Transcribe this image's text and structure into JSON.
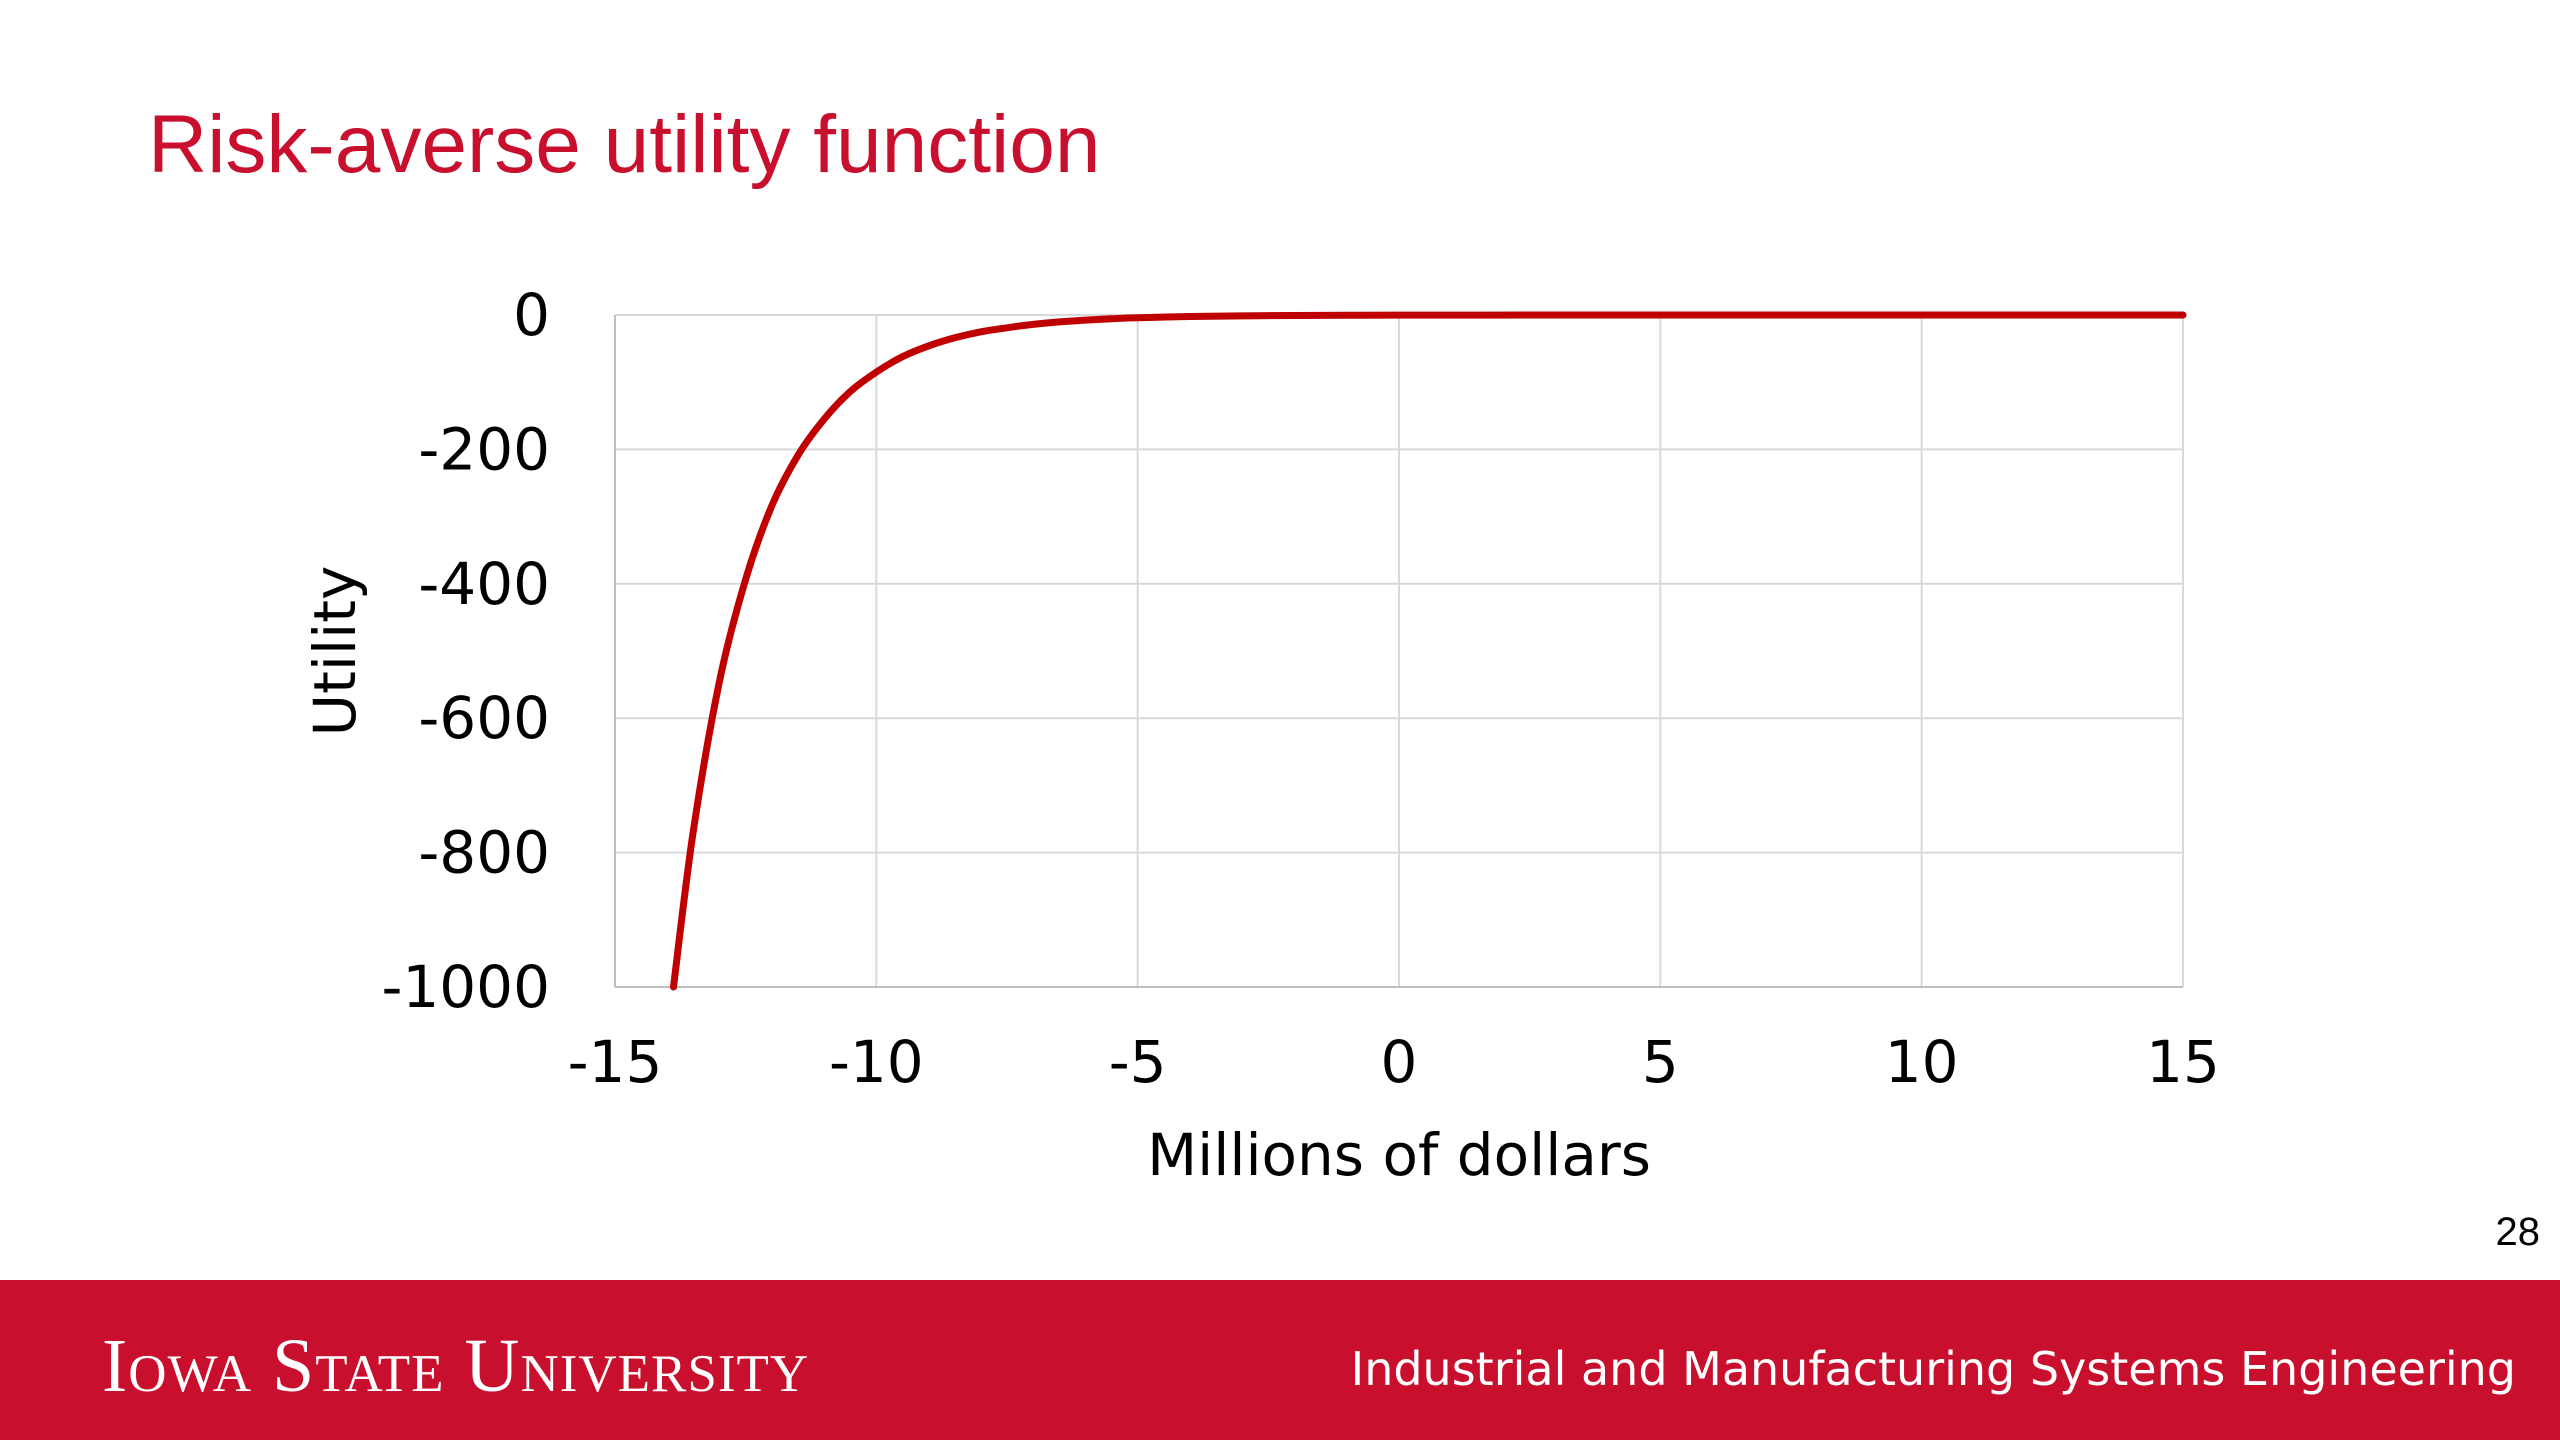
{
  "slide": {
    "title": "Risk-averse utility function",
    "page_number": "28"
  },
  "footer": {
    "university": "Iowa State University",
    "department": "Industrial and Manufacturing Systems Engineering"
  },
  "colors": {
    "accent": "#c8102e",
    "curve": "#c00000",
    "grid": "#d9d9d9"
  },
  "chart_data": {
    "type": "line",
    "title": "",
    "xlabel": "Millions of dollars",
    "ylabel": "Utility",
    "xlim": [
      -15,
      15
    ],
    "ylim": [
      -1000,
      0
    ],
    "x_ticks": [
      "-15",
      "-10",
      "-5",
      "0",
      "5",
      "10",
      "15"
    ],
    "y_ticks": [
      "0",
      "-200",
      "-400",
      "-600",
      "-800",
      "-1000"
    ],
    "grid": true,
    "legend": "none",
    "series": [
      {
        "x": [
          -13.88,
          -13.5,
          -13,
          -12.5,
          -12,
          -11.5,
          -11,
          -10.5,
          -10,
          -9.5,
          -9,
          -8.5,
          -8,
          -7.5,
          -7,
          -6.5,
          -6,
          -5.5,
          -5,
          -4,
          -3,
          -2,
          -1,
          0,
          2.5,
          5,
          7.5,
          10,
          12.5,
          15
        ],
        "y": [
          -1000,
          -767,
          -545,
          -393,
          -284,
          -209,
          -155,
          -114,
          -85,
          -62,
          -46,
          -34,
          -25,
          -19,
          -14,
          -10.3,
          -7.6,
          -5.6,
          -4.1,
          -2.3,
          -1.3,
          -0.7,
          -0.4,
          -0.2,
          -0.06,
          -0.02,
          -0.005,
          -0.002,
          -0.0005,
          -0.0001
        ]
      }
    ]
  }
}
